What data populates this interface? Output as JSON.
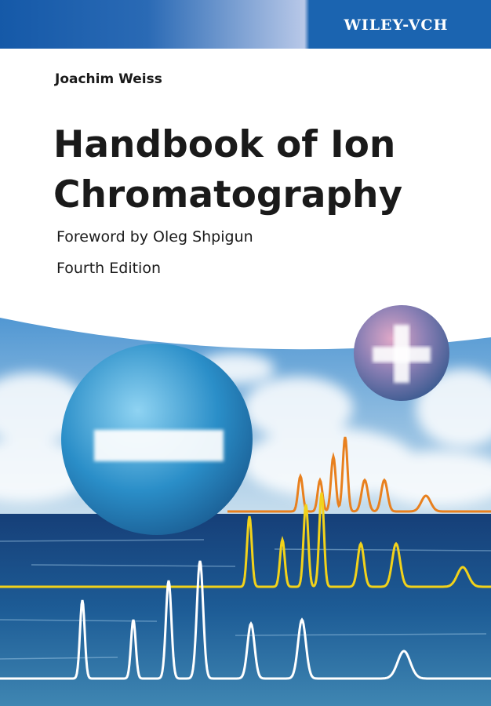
{
  "publisher": "WILEY-VCH",
  "author": "Joachim Weiss",
  "title": [
    "Handbook of Ion",
    "Chromatography"
  ],
  "foreword": "Foreword by Oleg Shpigun",
  "edition": "Fourth Edition"
}
